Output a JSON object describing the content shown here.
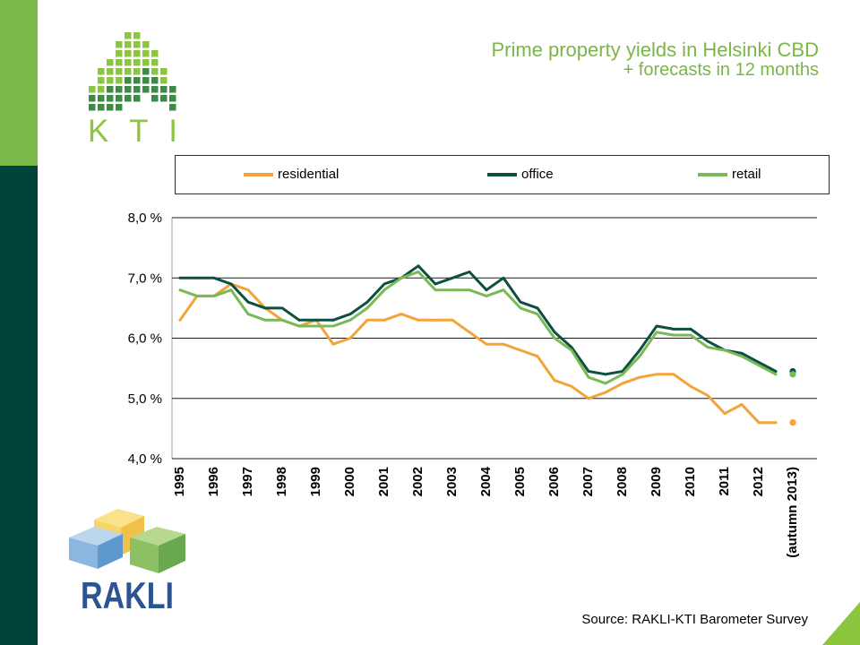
{
  "logos": {
    "kti": "KTI",
    "rakli": "RAKLI"
  },
  "source": "Source: RAKLI-KTI Barometer Survey",
  "colors": {
    "title_green": "#7ab648",
    "strip_light_green": "#78b94a",
    "strip_dark_green": "#00433a",
    "rakli_blue": "#2b5490"
  },
  "chart_data": {
    "type": "line",
    "title": "Prime property yields in Helsinki CBD",
    "subtitle": "+ forecasts in 12 months",
    "x": [
      1995,
      1995.5,
      1996,
      1996.5,
      1997,
      1997.5,
      1998,
      1998.5,
      1999,
      1999.5,
      2000,
      2000.5,
      2001,
      2001.5,
      2002,
      2002.5,
      2003,
      2003.5,
      2004,
      2004.5,
      2005,
      2005.5,
      2006,
      2006.5,
      2007,
      2007.5,
      2008,
      2008.5,
      2009,
      2009.5,
      2010,
      2010.5,
      2011,
      2011.5,
      2012,
      2012.5
    ],
    "x_ticks": [
      1995,
      1996,
      1997,
      1998,
      1999,
      2000,
      2001,
      2002,
      2003,
      2004,
      2005,
      2006,
      2007,
      2008,
      2009,
      2010,
      2011,
      2012,
      2013
    ],
    "x_tick_labels": [
      "1995",
      "1996",
      "1997",
      "1998",
      "1999",
      "2000",
      "2001",
      "2002",
      "2003",
      "2004",
      "2005",
      "2006",
      "2007",
      "2008",
      "2009",
      "2010",
      "2011",
      "2012",
      "(autumn 2013)"
    ],
    "y_ticks": [
      8,
      7,
      6,
      5,
      4
    ],
    "y_tick_labels": [
      "8,0 %",
      "7,0 %",
      "6,0 %",
      "5,0 %",
      "4,0 %"
    ],
    "ylim": [
      4,
      8
    ],
    "xlim": [
      1995,
      2013
    ],
    "grid": true,
    "legend": "top",
    "forecast_x": 2013,
    "series": [
      {
        "name": "residential",
        "color": "#f2a33a",
        "values": [
          6.3,
          6.7,
          6.7,
          6.9,
          6.8,
          6.5,
          6.3,
          6.2,
          6.3,
          5.9,
          6.0,
          6.3,
          6.3,
          6.4,
          6.3,
          6.3,
          6.3,
          6.1,
          5.9,
          5.9,
          5.8,
          5.7,
          5.3,
          5.2,
          5.0,
          5.1,
          5.25,
          5.35,
          5.4,
          5.4,
          5.2,
          5.05,
          4.75,
          4.9,
          4.6,
          4.6
        ],
        "forecast": 4.6
      },
      {
        "name": "office",
        "color": "#0d5042",
        "values": [
          7.0,
          7.0,
          7.0,
          6.9,
          6.6,
          6.5,
          6.5,
          6.3,
          6.3,
          6.3,
          6.4,
          6.6,
          6.9,
          7.0,
          7.2,
          6.9,
          7.0,
          7.1,
          6.8,
          7.0,
          6.6,
          6.5,
          6.1,
          5.85,
          5.45,
          5.4,
          5.45,
          5.8,
          6.2,
          6.15,
          6.15,
          5.95,
          5.8,
          5.75,
          5.6,
          5.45
        ],
        "forecast": 5.45
      },
      {
        "name": "retail",
        "color": "#79b956",
        "values": [
          6.8,
          6.7,
          6.7,
          6.8,
          6.4,
          6.3,
          6.3,
          6.2,
          6.2,
          6.2,
          6.3,
          6.5,
          6.8,
          7.0,
          7.1,
          6.8,
          6.8,
          6.8,
          6.7,
          6.8,
          6.5,
          6.4,
          6.0,
          5.8,
          5.35,
          5.25,
          5.4,
          5.7,
          6.1,
          6.05,
          6.05,
          5.85,
          5.8,
          5.7,
          5.55,
          5.4
        ],
        "forecast": 5.4
      }
    ]
  }
}
